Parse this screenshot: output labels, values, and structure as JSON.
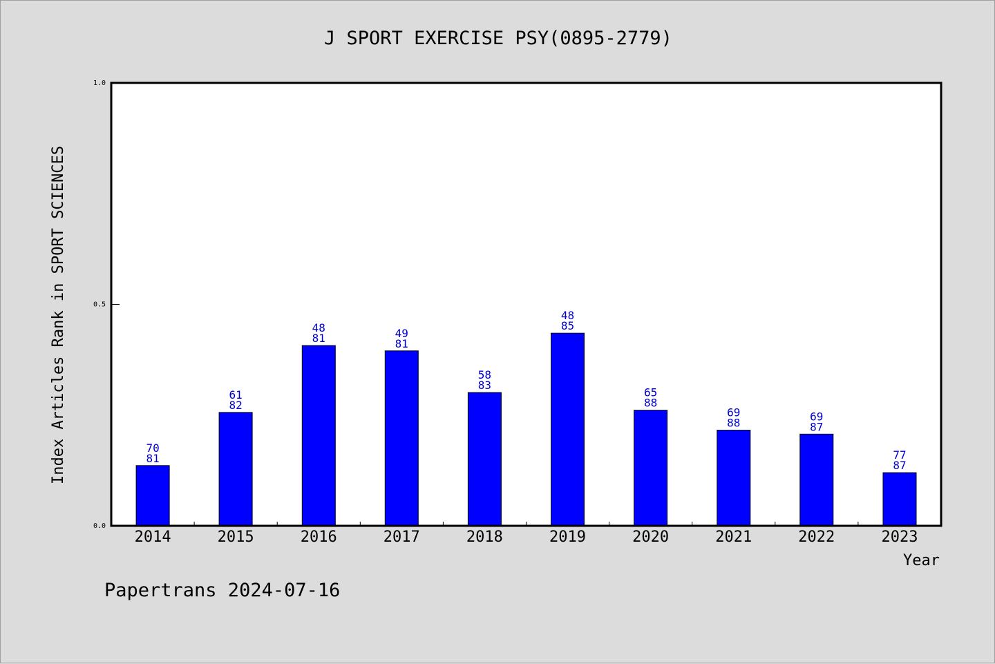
{
  "chart_data": {
    "type": "bar",
    "title": "J SPORT EXERCISE PSY(0895-2779)",
    "xlabel": "Year",
    "ylabel": "Index Articles Rank in SPORT SCIENCES",
    "ylim": [
      0,
      1.0
    ],
    "yticks": [
      "0.0",
      "0.5",
      "1.0"
    ],
    "categories": [
      "2014",
      "2015",
      "2016",
      "2017",
      "2018",
      "2019",
      "2020",
      "2021",
      "2022",
      "2023"
    ],
    "values": [
      0.136,
      0.256,
      0.407,
      0.395,
      0.301,
      0.435,
      0.261,
      0.216,
      0.207,
      0.12
    ],
    "rank": [
      "70",
      "61",
      "48",
      "49",
      "58",
      "48",
      "65",
      "69",
      "69",
      "77"
    ],
    "total": [
      "81",
      "82",
      "81",
      "81",
      "83",
      "85",
      "88",
      "88",
      "87",
      "87"
    ],
    "bar_color": "#0000ff",
    "label_color": "#0000cc",
    "grid": false
  },
  "footer": "Papertrans 2024-07-16"
}
